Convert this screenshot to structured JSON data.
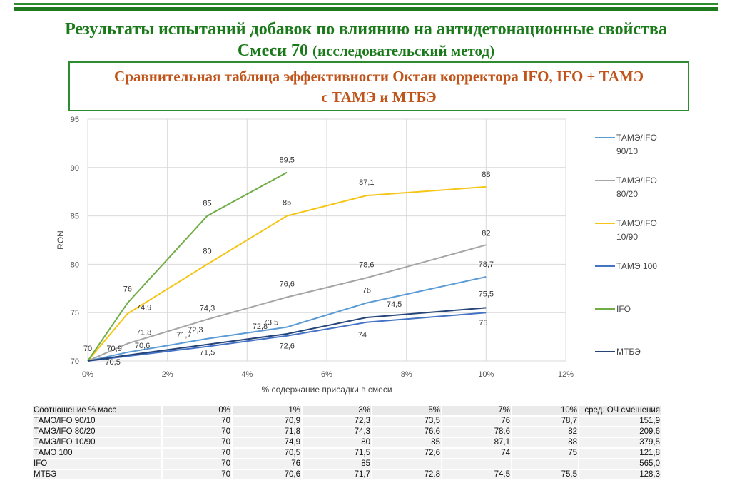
{
  "header": {
    "title_line1": "Результаты испытаний добавок по влиянию на антидетонационные свойства",
    "title_line2_main": "Смеси 70",
    "title_line2_sub": "(исследовательский метод)",
    "box_line1": "Сравнительная таблица эффективности Октан корректора IFO, IFO + ТАМЭ",
    "box_line2": "с ТАМЭ и МТБЭ"
  },
  "chart_data": {
    "type": "line",
    "xlabel": "% содержание присадки в смеси",
    "ylabel": "RON",
    "xlim": [
      0,
      12
    ],
    "ylim": [
      70,
      95
    ],
    "x_ticks": [
      "0%",
      "2%",
      "4%",
      "6%",
      "8%",
      "10%",
      "12%"
    ],
    "y_ticks": [
      "70",
      "75",
      "80",
      "85",
      "90",
      "95"
    ],
    "grid": true,
    "legend_position": "right",
    "series": [
      {
        "name": "ТАМЭ/IFO 90/10",
        "color": "#5b9bd5",
        "x": [
          0,
          1,
          3,
          5,
          7,
          10
        ],
        "values": [
          70,
          70.9,
          72.3,
          73.5,
          76,
          78.7
        ],
        "labels": [
          "",
          "70,9",
          "72,3",
          "73,5",
          "76",
          "78,7"
        ]
      },
      {
        "name": "ТАМЭ/IFO 80/20",
        "color": "#a5a5a5",
        "x": [
          0,
          1,
          3,
          5,
          7,
          10
        ],
        "values": [
          70,
          71.8,
          74.3,
          76.6,
          78.6,
          82
        ],
        "labels": [
          "",
          "71,8",
          "74,3",
          "76,6",
          "78,6",
          "82"
        ]
      },
      {
        "name": "ТАМЭ/IFO 10/90",
        "color": "#f5c518",
        "x": [
          0,
          1,
          3,
          5,
          7,
          10
        ],
        "values": [
          70,
          74.9,
          80,
          85,
          87.1,
          88
        ],
        "labels": [
          "",
          "74,9",
          "80",
          "85",
          "87,1",
          "88"
        ]
      },
      {
        "name": "ТАМЭ 100",
        "color": "#4472c4",
        "x": [
          0,
          1,
          3,
          5,
          7,
          10
        ],
        "values": [
          70,
          70.5,
          71.5,
          72.6,
          74,
          75
        ],
        "labels": [
          "70",
          "70,5",
          "71,5",
          "72,6",
          "74",
          "75"
        ]
      },
      {
        "name": "IFO",
        "color": "#70ad47",
        "x": [
          0,
          1,
          3,
          5
        ],
        "values": [
          70,
          76,
          85,
          89.5
        ],
        "labels": [
          "",
          "76",
          "85",
          "89,5"
        ]
      },
      {
        "name": "МТБЭ",
        "color": "#264478",
        "x": [
          0,
          1,
          3,
          5,
          7,
          10
        ],
        "values": [
          70,
          70.6,
          71.7,
          72.8,
          74.5,
          75.5
        ],
        "labels": [
          "",
          "70,6",
          "71,7",
          "72,8",
          "74,5",
          "75,5"
        ]
      }
    ]
  },
  "table": {
    "header": [
      "Соотношение % масс",
      "0%",
      "1%",
      "3%",
      "5%",
      "7%",
      "10%",
      "сред. ОЧ смешения"
    ],
    "rows": [
      [
        "ТАМЭ/IFO 90/10",
        "70",
        "70,9",
        "72,3",
        "73,5",
        "76",
        "78,7",
        "151,9"
      ],
      [
        "ТАМЭ/IFO 80/20",
        "70",
        "71,8",
        "74,3",
        "76,6",
        "78,6",
        "82",
        "209,6"
      ],
      [
        "ТАМЭ/IFO 10/90",
        "70",
        "74,9",
        "80",
        "85",
        "87,1",
        "88",
        "379,5"
      ],
      [
        "ТАМЭ 100",
        "70",
        "70,5",
        "71,5",
        "72,6",
        "74",
        "75",
        "121,8"
      ],
      [
        "IFO",
        "70",
        "76",
        "85",
        "",
        "",
        "",
        "565,0"
      ],
      [
        "МТБЭ",
        "70",
        "70,6",
        "71,7",
        "72,8",
        "74,5",
        "75,5",
        "128,3"
      ]
    ]
  }
}
